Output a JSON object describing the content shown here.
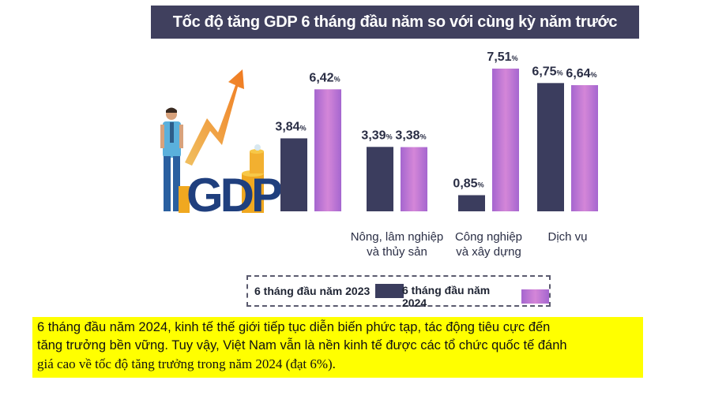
{
  "header": {
    "title": "Tốc độ tăng GDP 6 tháng đầu năm so với cùng kỳ năm trước"
  },
  "illustration": {
    "label": "GDP"
  },
  "chart_data": {
    "type": "bar",
    "title": "Tốc độ tăng GDP 6 tháng đầu năm so với cùng kỳ năm trước",
    "categories": [
      "",
      "Nông, lâm nghiệp và thủy sản",
      "Công nghiệp và xây dựng",
      "Dịch vụ"
    ],
    "category_lines": [
      [
        "",
        ""
      ],
      [
        "Nông, lâm nghiệp",
        "và thủy sản"
      ],
      [
        "Công nghiệp",
        "và xây dựng"
      ],
      [
        "Dịch vụ",
        ""
      ]
    ],
    "series": [
      {
        "name": "6 tháng đầu năm 2023",
        "values": [
          3.84,
          3.39,
          0.85,
          6.75
        ],
        "color": "#3b3d5e"
      },
      {
        "name": "6 tháng đầu năm 2024",
        "values": [
          6.42,
          3.38,
          7.51,
          6.64
        ],
        "color": "#c27ad6"
      }
    ],
    "value_labels": [
      [
        "3,84",
        "3,39",
        "0,85",
        "6,75"
      ],
      [
        "6,42",
        "3,38",
        "7,51",
        "6,64"
      ]
    ],
    "unit": "%",
    "ylim": [
      0,
      8
    ],
    "grid": false,
    "legend_position": "bottom"
  },
  "legend": {
    "items": [
      {
        "label": "6 tháng đầu năm 2023",
        "color": "#3b3d5e"
      },
      {
        "label": "6 tháng đầu năm 2024",
        "color": "#c27ad6"
      }
    ]
  },
  "note": {
    "line1": "6 tháng đầu năm 2024, kinh tế thế giới tiếp tục diễn biến phức tạp, tác động tiêu cực đến",
    "line2": "tăng trưởng bền vững. Tuy vậy, Việt Nam vẫn là nền kinh tế được các tổ chức quốc tế đánh",
    "line3": "giá cao về tốc độ tăng trưởng trong năm 2024 (đạt 6%)."
  }
}
